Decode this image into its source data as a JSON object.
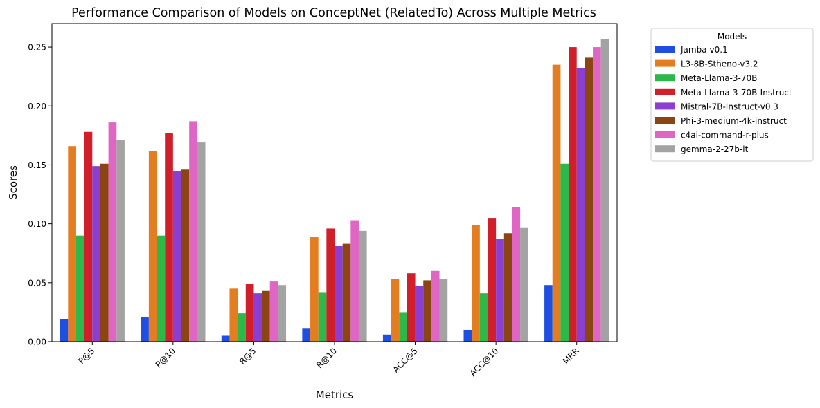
{
  "chart_data": {
    "type": "bar",
    "title": "Performance Comparison of Models on ConceptNet (RelatedTo) Across Multiple Metrics",
    "xlabel": "Metrics",
    "ylabel": "Scores",
    "ylim": [
      0,
      0.27
    ],
    "yticks": [
      "0.00",
      "0.05",
      "0.10",
      "0.15",
      "0.20",
      "0.25"
    ],
    "grid": false,
    "legend": {
      "title": "Models",
      "placement": "outside-right"
    },
    "categories": [
      "P@5",
      "P@10",
      "R@5",
      "R@10",
      "ACC@5",
      "ACC@10",
      "MRR"
    ],
    "series": [
      {
        "name": "Jamba-v0.1",
        "color": "#1f4fe0",
        "values": [
          0.019,
          0.021,
          0.005,
          0.011,
          0.006,
          0.01,
          0.048
        ]
      },
      {
        "name": "L3-8B-Stheno-v3.2",
        "color": "#e37d1f",
        "values": [
          0.166,
          0.162,
          0.045,
          0.089,
          0.053,
          0.099,
          0.235
        ]
      },
      {
        "name": "Meta-Llama-3-70B",
        "color": "#2db84a",
        "values": [
          0.09,
          0.09,
          0.024,
          0.042,
          0.025,
          0.041,
          0.151
        ]
      },
      {
        "name": "Meta-Llama-3-70B-Instruct",
        "color": "#d01f2b",
        "values": [
          0.178,
          0.177,
          0.049,
          0.096,
          0.058,
          0.105,
          0.25
        ]
      },
      {
        "name": "Mistral-7B-Instruct-v0.3",
        "color": "#8a3fd1",
        "values": [
          0.149,
          0.145,
          0.041,
          0.081,
          0.047,
          0.087,
          0.232
        ]
      },
      {
        "name": "Phi-3-medium-4k-instruct",
        "color": "#8b4513",
        "values": [
          0.151,
          0.146,
          0.043,
          0.083,
          0.052,
          0.092,
          0.241
        ]
      },
      {
        "name": "c4ai-command-r-plus",
        "color": "#e066c3",
        "values": [
          0.186,
          0.187,
          0.051,
          0.103,
          0.06,
          0.114,
          0.25
        ]
      },
      {
        "name": "gemma-2-27b-it",
        "color": "#a3a3a3",
        "values": [
          0.171,
          0.169,
          0.048,
          0.094,
          0.053,
          0.097,
          0.257
        ]
      }
    ]
  }
}
